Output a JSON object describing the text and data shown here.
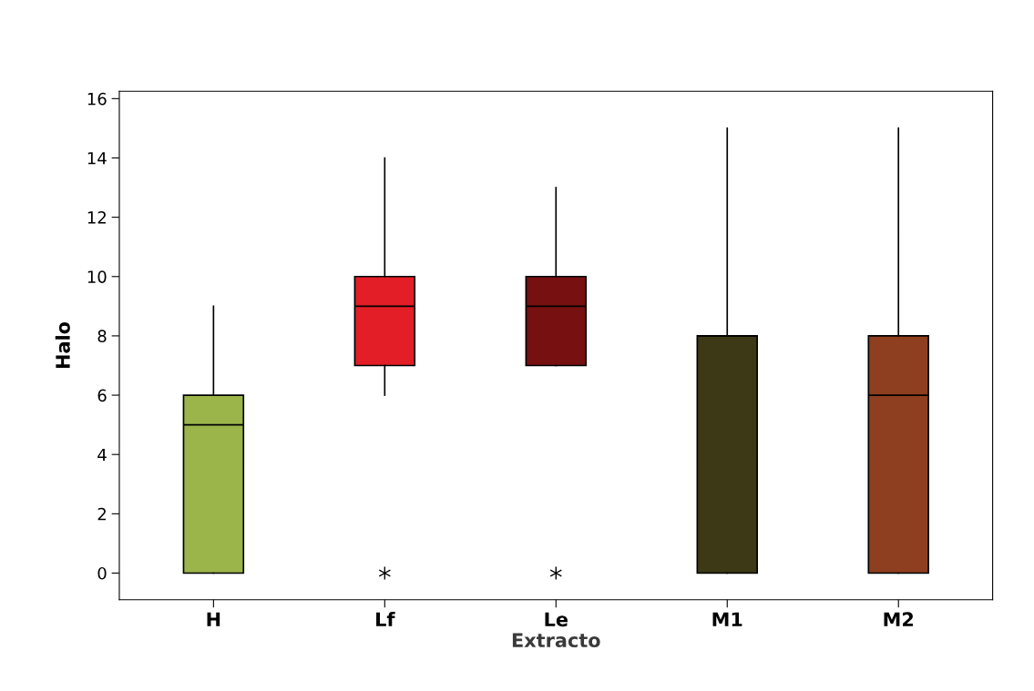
{
  "chart_data": {
    "type": "box",
    "xlabel": "Extracto",
    "ylabel": "Halo",
    "categories": [
      "H",
      "Lf",
      "Le",
      "M1",
      "M2"
    ],
    "colors": [
      "#9bb54b",
      "#e31e26",
      "#771011",
      "#3d3815",
      "#8e3f1f"
    ],
    "boxes": [
      {
        "low": 0,
        "q1": 0,
        "median": 5,
        "q3": 6,
        "high": 9
      },
      {
        "low": 6,
        "q1": 7,
        "median": 9,
        "q3": 10,
        "high": 14,
        "outliers": [
          0
        ]
      },
      {
        "low": 7,
        "q1": 7,
        "median": 9,
        "q3": 10,
        "high": 13,
        "outliers": [
          0
        ]
      },
      {
        "low": 0,
        "q1": 0,
        "median": 8,
        "q3": 8,
        "high": 15
      },
      {
        "low": 0,
        "q1": 0,
        "median": 6,
        "q3": 8,
        "high": 15
      }
    ],
    "ylim": [
      -0.9,
      16.25
    ],
    "yticks": [
      0,
      2,
      4,
      6,
      8,
      10,
      12,
      14,
      16
    ],
    "grid": false,
    "legend": false
  }
}
